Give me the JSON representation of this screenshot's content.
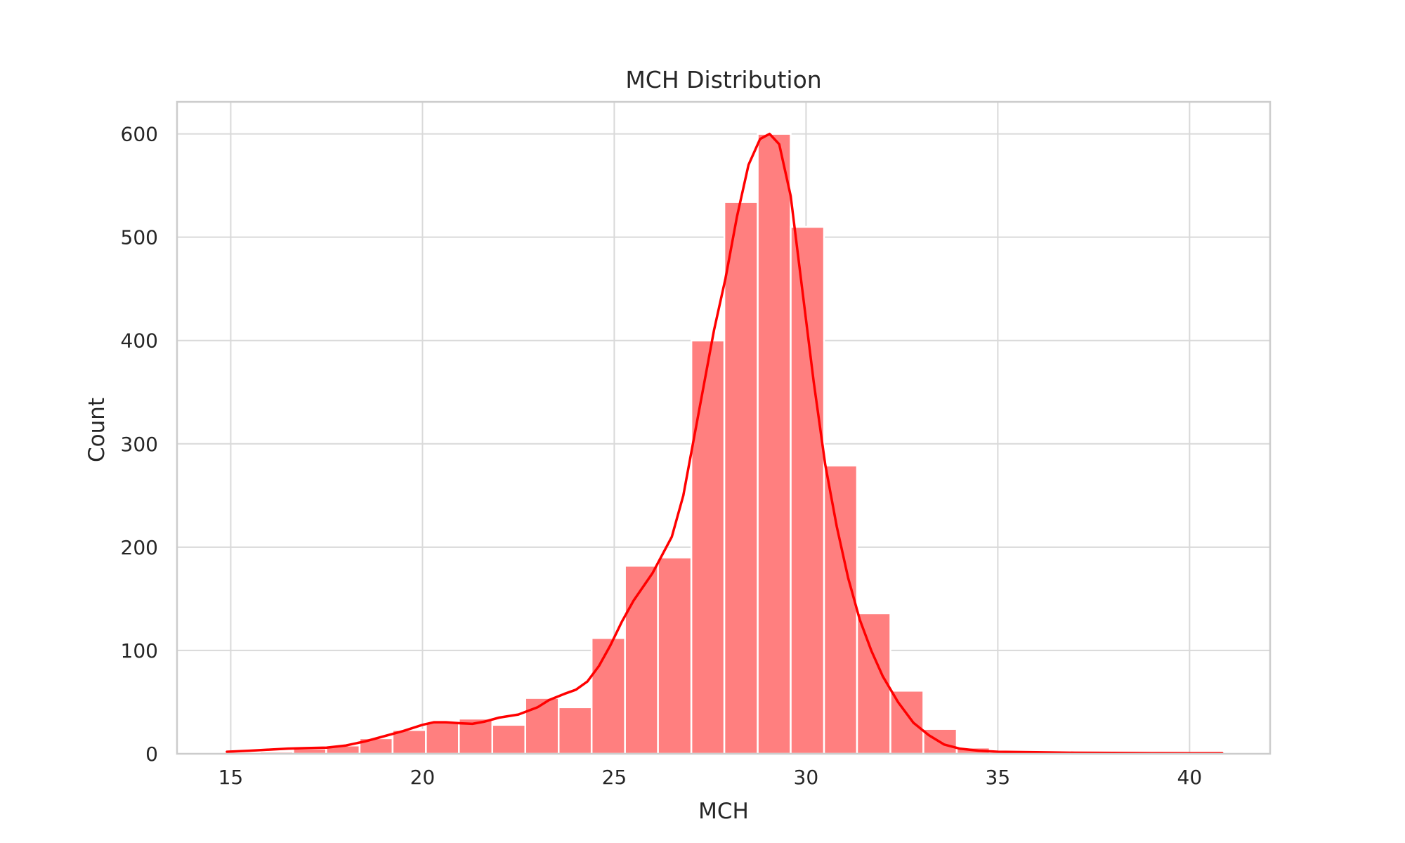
{
  "chart_data": {
    "type": "bar",
    "title": "MCH Distribution",
    "xlabel": "MCH",
    "ylabel": "Count",
    "xlim": [
      13.6,
      42.1
    ],
    "ylim": [
      0,
      631
    ],
    "x_ticks": [
      15,
      20,
      25,
      30,
      35,
      40
    ],
    "y_ticks": [
      0,
      100,
      200,
      300,
      400,
      500,
      600
    ],
    "grid": true,
    "legend": "none",
    "bar_color": "#ff7f7f",
    "kde_color": "#ff0000",
    "grid_color": "#d9d9d9",
    "bin_width": 0.864,
    "bins": [
      {
        "x0": 14.9,
        "x1": 15.76,
        "count": 1
      },
      {
        "x0": 15.76,
        "x1": 16.63,
        "count": 2
      },
      {
        "x0": 16.63,
        "x1": 17.49,
        "count": 5
      },
      {
        "x0": 17.49,
        "x1": 18.36,
        "count": 8
      },
      {
        "x0": 18.36,
        "x1": 19.22,
        "count": 15
      },
      {
        "x0": 19.22,
        "x1": 20.09,
        "count": 23
      },
      {
        "x0": 20.09,
        "x1": 20.95,
        "count": 31
      },
      {
        "x0": 20.95,
        "x1": 21.82,
        "count": 34
      },
      {
        "x0": 21.82,
        "x1": 22.68,
        "count": 28
      },
      {
        "x0": 22.68,
        "x1": 23.55,
        "count": 54
      },
      {
        "x0": 23.55,
        "x1": 24.41,
        "count": 45
      },
      {
        "x0": 24.41,
        "x1": 25.28,
        "count": 112
      },
      {
        "x0": 25.28,
        "x1": 26.14,
        "count": 182
      },
      {
        "x0": 26.14,
        "x1": 27.01,
        "count": 190
      },
      {
        "x0": 27.01,
        "x1": 27.87,
        "count": 400
      },
      {
        "x0": 27.87,
        "x1": 28.74,
        "count": 534
      },
      {
        "x0": 28.74,
        "x1": 29.6,
        "count": 600
      },
      {
        "x0": 29.6,
        "x1": 30.47,
        "count": 510
      },
      {
        "x0": 30.47,
        "x1": 31.33,
        "count": 279
      },
      {
        "x0": 31.33,
        "x1": 32.2,
        "count": 136
      },
      {
        "x0": 32.2,
        "x1": 33.06,
        "count": 61
      },
      {
        "x0": 33.06,
        "x1": 33.93,
        "count": 24
      },
      {
        "x0": 33.93,
        "x1": 34.79,
        "count": 6
      },
      {
        "x0": 34.79,
        "x1": 35.66,
        "count": 1
      },
      {
        "x0": 35.66,
        "x1": 36.52,
        "count": 1
      },
      {
        "x0": 36.52,
        "x1": 37.39,
        "count": 0
      },
      {
        "x0": 37.39,
        "x1": 38.25,
        "count": 1
      },
      {
        "x0": 38.25,
        "x1": 39.12,
        "count": 0
      },
      {
        "x0": 39.12,
        "x1": 39.98,
        "count": 0
      },
      {
        "x0": 39.98,
        "x1": 40.85,
        "count": 1
      }
    ],
    "kde": [
      [
        14.9,
        2
      ],
      [
        15.5,
        3
      ],
      [
        16,
        4
      ],
      [
        16.5,
        5
      ],
      [
        17,
        5.5
      ],
      [
        17.5,
        6
      ],
      [
        18,
        8
      ],
      [
        18.5,
        12
      ],
      [
        19,
        17
      ],
      [
        19.5,
        22
      ],
      [
        20,
        28
      ],
      [
        20.3,
        30.5
      ],
      [
        20.6,
        30.5
      ],
      [
        21,
        29.5
      ],
      [
        21.3,
        29
      ],
      [
        21.6,
        31
      ],
      [
        22,
        35
      ],
      [
        22.5,
        38
      ],
      [
        23,
        45
      ],
      [
        23.3,
        52
      ],
      [
        23.7,
        58
      ],
      [
        24,
        62
      ],
      [
        24.3,
        70
      ],
      [
        24.6,
        85
      ],
      [
        24.9,
        105
      ],
      [
        25.2,
        128
      ],
      [
        25.5,
        148
      ],
      [
        26,
        175
      ],
      [
        26.5,
        210
      ],
      [
        26.8,
        250
      ],
      [
        27,
        290
      ],
      [
        27.3,
        350
      ],
      [
        27.6,
        410
      ],
      [
        27.9,
        460
      ],
      [
        28.2,
        520
      ],
      [
        28.5,
        570
      ],
      [
        28.8,
        595
      ],
      [
        29.05,
        600
      ],
      [
        29.3,
        590
      ],
      [
        29.6,
        540
      ],
      [
        29.9,
        450
      ],
      [
        30.2,
        360
      ],
      [
        30.5,
        280
      ],
      [
        30.8,
        220
      ],
      [
        31.1,
        170
      ],
      [
        31.4,
        130
      ],
      [
        31.7,
        100
      ],
      [
        32,
        75
      ],
      [
        32.4,
        50
      ],
      [
        32.8,
        30
      ],
      [
        33.2,
        18
      ],
      [
        33.6,
        9
      ],
      [
        34,
        5
      ],
      [
        34.5,
        3
      ],
      [
        35,
        2
      ],
      [
        36,
        1.5
      ],
      [
        37,
        1
      ],
      [
        38,
        0.8
      ],
      [
        39,
        0.6
      ],
      [
        40,
        0.5
      ],
      [
        40.85,
        0.5
      ]
    ]
  }
}
